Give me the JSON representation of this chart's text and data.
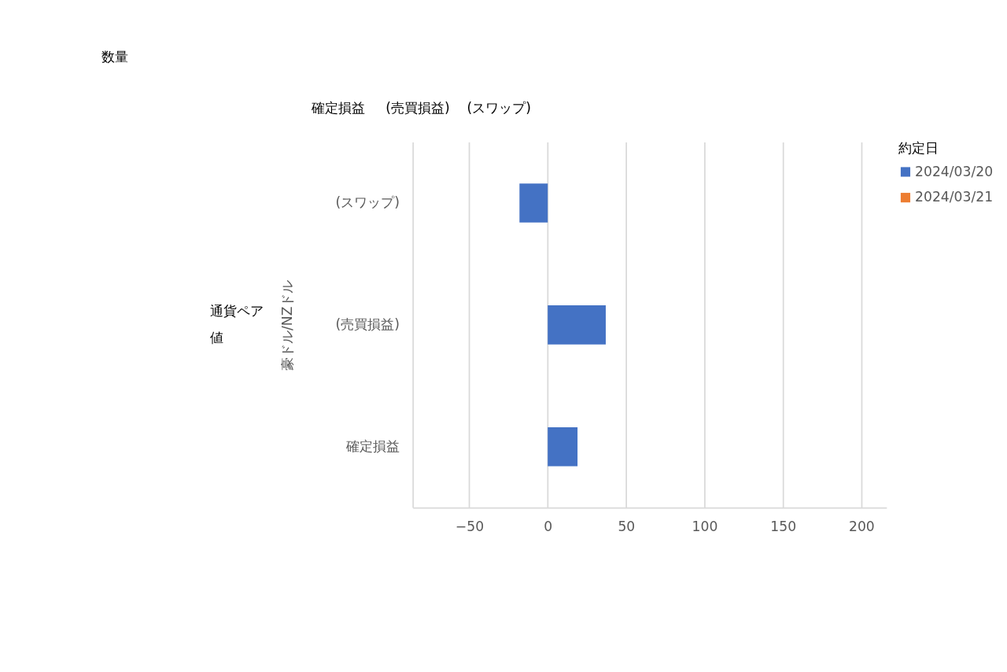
{
  "chart_data": {
    "type": "bar",
    "orientation": "horizontal",
    "title": "数量",
    "ylabel": "豪ドル/NZドル",
    "legend_title": "約定日",
    "categories": [
      "(スワップ)",
      "(売買損益)",
      "確定損益"
    ],
    "series": [
      {
        "name": "2024/03/20",
        "color": "#4472c4",
        "values": [
          -18,
          37,
          19
        ]
      },
      {
        "name": "2024/03/21",
        "color": "#ed7d31",
        "values": [
          null,
          null,
          null
        ]
      }
    ],
    "xlim": [
      -86,
      216
    ],
    "xticks": [
      -50,
      0,
      50,
      100,
      150,
      200
    ],
    "grid": "x",
    "legend": "top right",
    "annotations": [
      "確定損益",
      "(売買損益)",
      "(スワップ)",
      "通貨ペア",
      "値"
    ]
  }
}
